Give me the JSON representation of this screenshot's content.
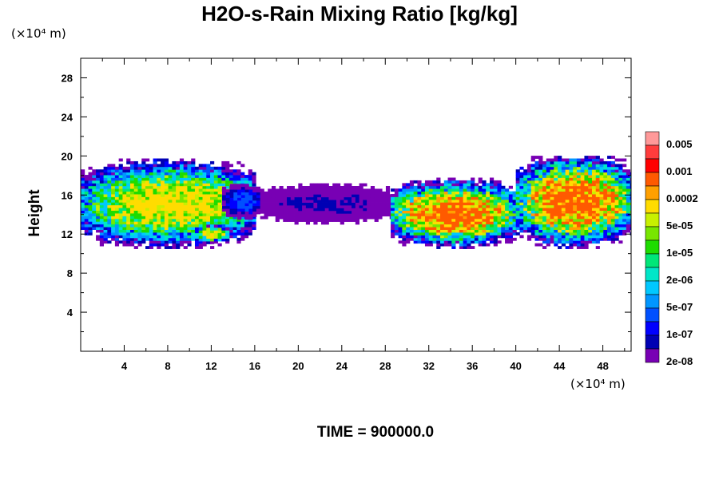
{
  "chart_data": {
    "type": "heatmap",
    "title": "H2O-s-Rain Mixing Ratio [kg/kg]",
    "ylabel": "Height",
    "xlabel": "",
    "x_unit_label": "(×10⁴ m)",
    "y_unit_label": "(×10⁴ m)",
    "xlim": [
      0,
      50.6
    ],
    "ylim": [
      0,
      30
    ],
    "x_ticks": [
      4,
      8,
      12,
      16,
      20,
      24,
      28,
      32,
      36,
      40,
      44,
      48
    ],
    "y_ticks": [
      4,
      8,
      12,
      16,
      20,
      24,
      28
    ],
    "colorbar": {
      "levels_labels": [
        "0.005",
        "0.001",
        "0.0002",
        "5e-05",
        "1e-05",
        "2e-06",
        "5e-07",
        "1e-07",
        "2e-08"
      ],
      "colors": [
        "#ff9999",
        "#ff3c3c",
        "#ff0000",
        "#ff5a00",
        "#ffa000",
        "#ffdc00",
        "#c8f000",
        "#78e600",
        "#1edc00",
        "#00e678",
        "#00e6c8",
        "#00c8ff",
        "#0096ff",
        "#0050ff",
        "#0000ff",
        "#0000b4",
        "#7800b4"
      ]
    },
    "regions": [
      {
        "x0": 0.0,
        "x1": 16.0,
        "y_bottom": 10.5,
        "y_top": 19.5,
        "peak": 0.0002
      },
      {
        "x0": 10.5,
        "x1": 13.5,
        "y_bottom": 11.0,
        "y_top": 12.8,
        "peak": 0.0002
      },
      {
        "x0": 13.0,
        "x1": 16.5,
        "y_bottom": 13.5,
        "y_top": 17.0,
        "peak": 5e-07
      },
      {
        "x0": 16.5,
        "x1": 28.5,
        "y_bottom": 13.0,
        "y_top": 17.0,
        "peak": 1e-07
      },
      {
        "x0": 28.5,
        "x1": 40.0,
        "y_bottom": 10.5,
        "y_top": 17.5,
        "peak": 0.001
      },
      {
        "x0": 40.0,
        "x1": 50.6,
        "y_bottom": 10.5,
        "y_top": 20.0,
        "peak": 0.001
      }
    ]
  },
  "footer": {
    "time_label": "TIME = 900000.0"
  }
}
